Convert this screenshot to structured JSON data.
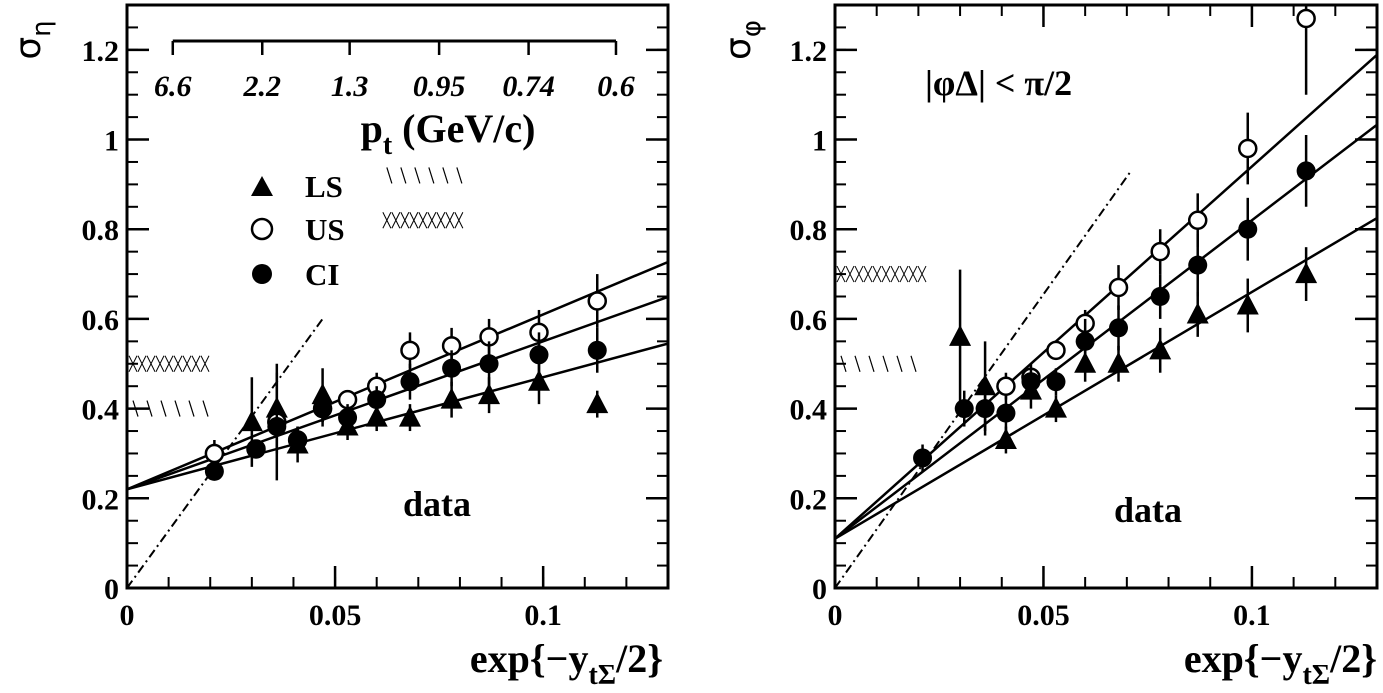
{
  "chart_data": [
    {
      "type": "scatter",
      "panel": "left",
      "title": "",
      "ylabel": "σ",
      "ylabel_sub": "η",
      "xlabel_main": "exp{−y",
      "xlabel_sub": "tΣ",
      "xlabel_tail": "/2}",
      "xlim": [
        0,
        0.13
      ],
      "ylim": [
        0,
        1.3
      ],
      "xticks": [
        0,
        0.05,
        0.1
      ],
      "xtick_labels": [
        "0",
        "0.05",
        "0.1"
      ],
      "yticks": [
        0,
        0.2,
        0.4,
        0.6,
        0.8,
        1.0,
        1.2
      ],
      "ytick_labels": [
        "0",
        "0.2",
        "0.4",
        "0.6",
        "0.8",
        "1",
        "1.2"
      ],
      "top_axis": {
        "label_main": "p",
        "label_sub": "t",
        "label_tail": " (GeV/c)",
        "ticks": [
          {
            "x": 0.011,
            "label": "6.6"
          },
          {
            "x": 0.0325,
            "label": "2.2"
          },
          {
            "x": 0.0535,
            "label": "1.3"
          },
          {
            "x": 0.075,
            "label": "0.95"
          },
          {
            "x": 0.0965,
            "label": "0.74"
          },
          {
            "x": 0.1175,
            "label": "0.6"
          }
        ]
      },
      "legend": {
        "placement": "top-left",
        "entries": [
          {
            "marker": "triangle",
            "label": "LS"
          },
          {
            "marker": "open-circle",
            "label": "US"
          },
          {
            "marker": "filled-circle",
            "label": "CI"
          }
        ]
      },
      "annotation": "data",
      "hatch_marks": [
        {
          "style": "diagonal",
          "x": [
            0.0,
            0.021
          ],
          "y": 0.4
        },
        {
          "style": "crosshatch",
          "x": [
            0.0,
            0.021
          ],
          "y": 0.5
        }
      ],
      "hatch_legend": [
        {
          "style": "diagonal",
          "x": [
            0.061,
            0.082
          ],
          "y": 0.92
        },
        {
          "style": "crosshatch",
          "x": [
            0.061,
            0.082
          ],
          "y": 0.82
        }
      ],
      "series": [
        {
          "name": "LS",
          "marker": "triangle",
          "x": [
            0.03,
            0.036,
            0.041,
            0.047,
            0.053,
            0.06,
            0.068,
            0.078,
            0.087,
            0.099,
            0.113
          ],
          "y": [
            0.37,
            0.4,
            0.32,
            0.43,
            0.36,
            0.38,
            0.38,
            0.42,
            0.43,
            0.46,
            0.41
          ],
          "err": [
            0.1,
            0.1,
            0.04,
            0.06,
            0.03,
            0.03,
            0.03,
            0.04,
            0.04,
            0.05,
            0.03
          ]
        },
        {
          "name": "US",
          "marker": "open-circle",
          "x": [
            0.021,
            0.031,
            0.036,
            0.041,
            0.047,
            0.053,
            0.06,
            0.068,
            0.078,
            0.087,
            0.099,
            0.113
          ],
          "y": [
            0.3,
            0.31,
            0.37,
            0.33,
            0.4,
            0.42,
            0.45,
            0.53,
            0.54,
            0.56,
            0.57,
            0.64
          ],
          "err": [
            0.03,
            0.02,
            0.03,
            0.03,
            0.03,
            0.02,
            0.03,
            0.04,
            0.04,
            0.04,
            0.05,
            0.06
          ]
        },
        {
          "name": "CI",
          "marker": "filled-circle",
          "x": [
            0.021,
            0.031,
            0.036,
            0.041,
            0.047,
            0.053,
            0.06,
            0.068,
            0.078,
            0.087,
            0.099,
            0.113
          ],
          "y": [
            0.26,
            0.31,
            0.36,
            0.33,
            0.4,
            0.38,
            0.42,
            0.46,
            0.49,
            0.5,
            0.52,
            0.53
          ],
          "err": [
            0.02,
            0.02,
            0.12,
            0.03,
            0.04,
            0.03,
            0.03,
            0.04,
            0.04,
            0.05,
            0.05,
            0.05
          ]
        }
      ],
      "fit_lines": [
        {
          "y0": 0.22,
          "slope": 3.9
        },
        {
          "y0": 0.22,
          "slope": 3.3
        },
        {
          "y0": 0.22,
          "slope": 2.5
        }
      ],
      "dashed_line": {
        "x": [
          0,
          0.047
        ],
        "y": [
          0,
          0.6
        ]
      }
    },
    {
      "type": "scatter",
      "panel": "right",
      "title": "",
      "ylabel": "σ",
      "ylabel_sub": "φ",
      "xlabel_main": "exp{−y",
      "xlabel_sub": "tΣ",
      "xlabel_tail": "/2}",
      "xlim": [
        0,
        0.13
      ],
      "ylim": [
        0,
        1.3
      ],
      "xticks": [
        0,
        0.05,
        0.1
      ],
      "xtick_labels": [
        "0",
        "0.05",
        "0.1"
      ],
      "yticks": [
        0,
        0.2,
        0.4,
        0.6,
        0.8,
        1.0,
        1.2
      ],
      "ytick_labels": [
        "0",
        "0.2",
        "0.4",
        "0.6",
        "0.8",
        "1",
        "1.2"
      ],
      "cut_label": "|φΔ| < π/2",
      "annotation": "data",
      "hatch_marks": [
        {
          "style": "crosshatch",
          "x": [
            0.0,
            0.022
          ],
          "y": 0.7
        },
        {
          "style": "diagonal",
          "x": [
            0.0,
            0.02
          ],
          "y": 0.5
        }
      ],
      "series": [
        {
          "name": "LS",
          "marker": "triangle",
          "x": [
            0.03,
            0.036,
            0.041,
            0.047,
            0.053,
            0.06,
            0.068,
            0.078,
            0.087,
            0.099,
            0.113
          ],
          "y": [
            0.56,
            0.45,
            0.33,
            0.44,
            0.4,
            0.5,
            0.5,
            0.53,
            0.61,
            0.63,
            0.7
          ],
          "err": [
            0.15,
            0.1,
            0.03,
            0.04,
            0.03,
            0.04,
            0.04,
            0.05,
            0.05,
            0.06,
            0.06
          ]
        },
        {
          "name": "US",
          "marker": "open-circle",
          "x": [
            0.041,
            0.047,
            0.053,
            0.06,
            0.068,
            0.078,
            0.087,
            0.099,
            0.113
          ],
          "y": [
            0.45,
            0.47,
            0.53,
            0.59,
            0.67,
            0.75,
            0.82,
            0.98,
            1.27
          ],
          "err": [
            0.03,
            0.02,
            0.02,
            0.03,
            0.05,
            0.05,
            0.06,
            0.08,
            0.17
          ]
        },
        {
          "name": "CI",
          "marker": "filled-circle",
          "x": [
            0.021,
            0.031,
            0.036,
            0.041,
            0.047,
            0.053,
            0.06,
            0.068,
            0.078,
            0.087,
            0.099,
            0.113
          ],
          "y": [
            0.29,
            0.4,
            0.4,
            0.39,
            0.46,
            0.46,
            0.55,
            0.58,
            0.65,
            0.72,
            0.8,
            0.93
          ],
          "err": [
            0.03,
            0.04,
            0.06,
            0.04,
            0.04,
            0.03,
            0.05,
            0.05,
            0.05,
            0.07,
            0.07,
            0.08
          ]
        }
      ],
      "fit_lines": [
        {
          "y0": 0.11,
          "slope": 8.3
        },
        {
          "y0": 0.11,
          "slope": 7.1
        },
        {
          "y0": 0.11,
          "slope": 5.5
        }
      ],
      "dashed_line": {
        "x": [
          0,
          0.071
        ],
        "y": [
          0,
          0.93
        ]
      }
    }
  ]
}
